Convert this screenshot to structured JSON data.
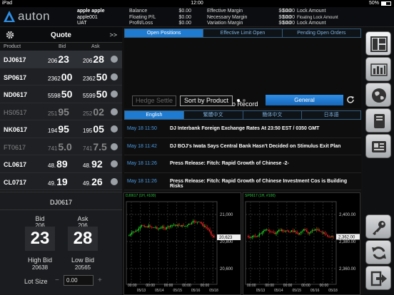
{
  "status_bar": {
    "device": "iPad",
    "time": "12:00",
    "battery": "50%"
  },
  "header": {
    "logo_text": "auton",
    "account_name": "apple apple",
    "account_id": "apple001",
    "account_type": "UAT",
    "col1": [
      {
        "label": "Balance",
        "value": "$0.00"
      },
      {
        "label": "Floating P/L",
        "value": "$0.00"
      },
      {
        "label": "Profit/Loss",
        "value": "$0.00"
      }
    ],
    "col2": [
      {
        "label": "Effective Margin",
        "value": "$0.00"
      },
      {
        "label": "Necessary Margin",
        "value": "$0.00"
      },
      {
        "label": "Variation Margin",
        "value": "$0.00"
      }
    ],
    "col3": [
      {
        "label": "Lock Amount",
        "value": "$0.00"
      },
      {
        "label": "Floating Lock Amount",
        "value": "$0.00"
      },
      {
        "label": "Lock Amount",
        "value": "$0.00"
      }
    ]
  },
  "quote": {
    "title": "Quote",
    "expand": ">>",
    "col_product": "Product",
    "col_bid": "Bid",
    "col_ask": "Ask",
    "rows": [
      {
        "product": "DJ0617",
        "bid_small": "206",
        "bid_big": "23",
        "ask_small": "206",
        "ask_big": "28",
        "dim": false,
        "selected": true
      },
      {
        "product": "SP0617",
        "bid_small": "2362",
        "bid_big": "00",
        "ask_small": "2362",
        "ask_big": "50",
        "dim": false,
        "selected": false
      },
      {
        "product": "ND0617",
        "bid_small": "5598",
        "bid_big": "50",
        "ask_small": "5599",
        "ask_big": "50",
        "dim": false,
        "selected": false
      },
      {
        "product": "HS0517",
        "bid_small": "251",
        "bid_big": "95",
        "ask_small": "252",
        "ask_big": "02",
        "dim": true,
        "selected": false
      },
      {
        "product": "NK0617",
        "bid_small": "194",
        "bid_big": "95",
        "ask_small": "195",
        "ask_big": "05",
        "dim": false,
        "selected": false
      },
      {
        "product": "FT0617",
        "bid_small": "741",
        "bid_big": "5.0",
        "ask_small": "741",
        "ask_big": "7.5",
        "dim": true,
        "selected": false
      },
      {
        "product": "CL0617",
        "bid_small": "48.",
        "bid_big": "89",
        "ask_small": "48.",
        "ask_big": "92",
        "dim": false,
        "selected": false
      },
      {
        "product": "CL0717",
        "bid_small": "49.",
        "bid_big": "19",
        "ask_small": "49.",
        "ask_big": "26",
        "dim": false,
        "selected": false
      }
    ]
  },
  "detail": {
    "symbol": "DJ0617",
    "bid_label": "Bid",
    "bid_small": "206",
    "bid_big": "23",
    "ask_label": "Ask",
    "ask_small": "206",
    "ask_big": "28",
    "high_label": "High Bid",
    "high_value": "20638",
    "low_label": "Low Bid",
    "low_value": "20565",
    "lot_label": "Lot Size",
    "lot_value": "0.00",
    "minus": "−",
    "plus": "+"
  },
  "positions": {
    "tabs": [
      "Open Positions",
      "Effective Limit Open",
      "Pending Open Orders"
    ],
    "active_tab": 0,
    "empty_text": "No Record",
    "hedge_label": "Hedge Settle",
    "sort_label": "Sort by Product",
    "general_label": "General"
  },
  "news": {
    "tabs": [
      "English",
      "繁體中文",
      "簡体中文",
      "日本語"
    ],
    "active_tab": 0,
    "items": [
      {
        "time": "May 18 11:50",
        "headline": "DJ Interbank Foreign Exchange Rates At 23:50 EST / 0350 GMT"
      },
      {
        "time": "May 18 11:42",
        "headline": "DJ BOJ's Iwata Says Central Bank Hasn't Decided on Stimulus Exit Plan"
      },
      {
        "time": "May 18 11:26",
        "headline": "Press Release: Fitch: Rapid Growth of Chinese -2-"
      },
      {
        "time": "May 18 11:26",
        "headline": "Press Release: Fitch: Rapid Growth of Chinese Investment Cos is Building Risks"
      }
    ]
  },
  "charts": [
    {
      "title": "DJ0617 (1H, #100)",
      "y_ticks": [
        "21,000",
        "20,800",
        "20,600"
      ],
      "last_price": "20,623",
      "x_ticks": [
        "00:00",
        "05/13",
        "00:00",
        "05/14",
        "00:00",
        "05/15",
        "00:00",
        "05/16",
        "00:00",
        "05/18"
      ]
    },
    {
      "title": "SP0617 (1H, #100)",
      "y_ticks": [
        "2,400.00",
        "2,380.00",
        "2,360.00"
      ],
      "last_price": "2,362.00",
      "x_ticks": [
        "00:00",
        "05/13",
        "00:00",
        "05/14",
        "00:00",
        "05/15",
        "00:00",
        "05/16",
        "00:00",
        "05/18"
      ]
    }
  ],
  "sidebar_icons": [
    "layout-icon",
    "chart-bars-icon",
    "globe-icon",
    "book-icon",
    "news-card-icon",
    "key-icon",
    "sync-icon",
    "logout-icon"
  ]
}
